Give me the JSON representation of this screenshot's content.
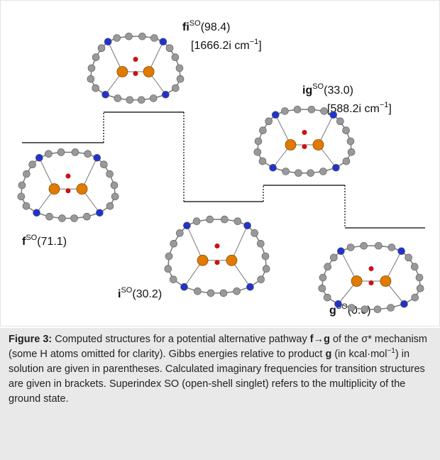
{
  "states": [
    {
      "name": "fi",
      "sup": "SO",
      "energy": "(98.4)",
      "freq": "[1666.2i cm",
      "freq_sup": "−1",
      "freq_end": "]"
    },
    {
      "name": "f",
      "sup": "SO",
      "energy": "(71.1)"
    },
    {
      "name": "ig",
      "sup": "SO",
      "energy": "(33.0)",
      "freq": "[588.2i cm",
      "freq_sup": "−1",
      "freq_end": "]"
    },
    {
      "name": "i",
      "sup": "SO",
      "energy": "(30.2)"
    },
    {
      "name": "g",
      "sup": "SO",
      "energy": "(0.0)"
    }
  ],
  "caption": {
    "label": "Figure 3:",
    "text_1": " Computed structures for a potential alternative pathway ",
    "bold_1": "f→g",
    "text_2": " of the σ* mechanism (some H atoms omitted for clarity). Gibbs energies relative to product ",
    "bold_2": "g",
    "text_3": " (in kcal·mol",
    "sup_1": "−1",
    "text_4": ") in solution are given in parentheses. Calculated imaginary frequencies for transition structures are given in brackets. Superindex SO (open-shell singlet) refers to the multiplicity of the ground state."
  }
}
